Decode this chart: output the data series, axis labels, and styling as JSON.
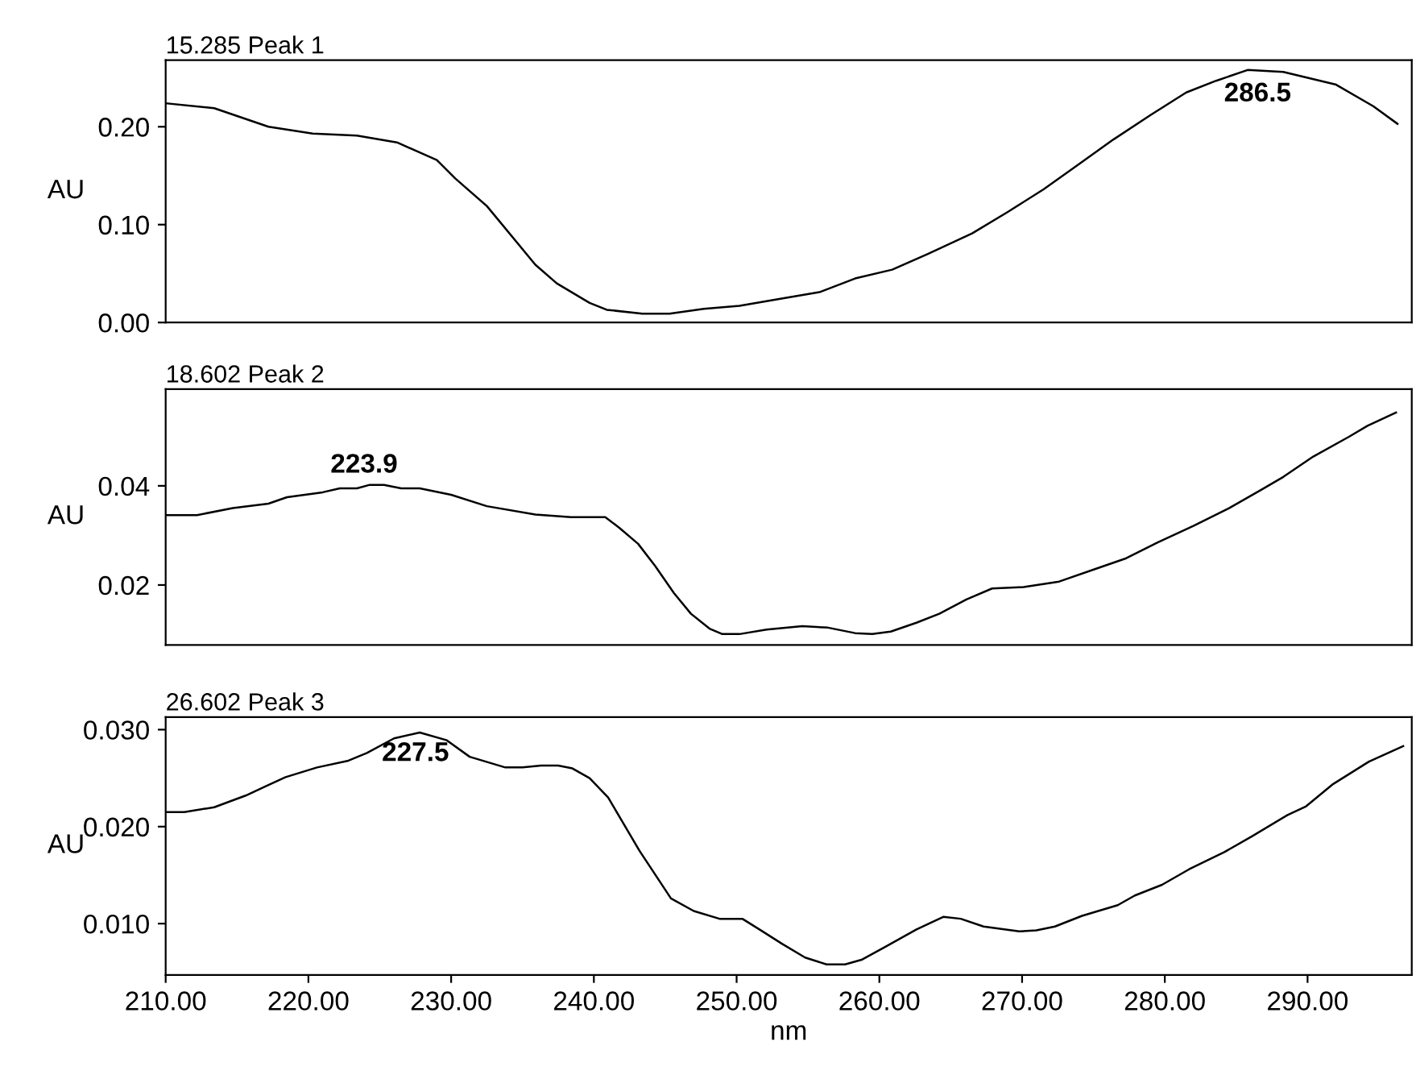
{
  "chart_data": [
    {
      "type": "line",
      "title": "15.285 Peak 1",
      "ylabel": "AU",
      "xlim": [
        210,
        297.3
      ],
      "ylim": [
        0,
        0.268
      ],
      "yticks": [
        {
          "value": 0,
          "label": "0.00"
        },
        {
          "value": 0.1,
          "label": "0.10"
        },
        {
          "value": 0.2,
          "label": "0.20"
        }
      ],
      "tick_labels": "y",
      "series": [
        {
          "color": "#000000",
          "x": [
            210,
            213.4,
            217.2,
            220.3,
            223.4,
            226.2,
            229,
            230.3,
            232.5,
            235.9,
            237.4,
            239.7,
            240.9,
            243.4,
            245.3,
            247.7,
            250.2,
            253.4,
            255.8,
            258.3,
            260.9,
            263.4,
            266.5,
            269,
            271.5,
            273.9,
            276.4,
            279,
            281.5,
            283.6,
            285.8,
            288.3,
            292,
            294.6,
            296.3
          ],
          "values": [
            0.224,
            0.219,
            0.2,
            0.193,
            0.191,
            0.184,
            0.166,
            0.147,
            0.119,
            0.059,
            0.04,
            0.02,
            0.013,
            0.009,
            0.009,
            0.014,
            0.017,
            0.025,
            0.031,
            0.045,
            0.054,
            0.07,
            0.091,
            0.113,
            0.136,
            0.161,
            0.187,
            0.212,
            0.235,
            0.247,
            0.258,
            0.256,
            0.243,
            0.221,
            0.203
          ]
        }
      ],
      "annotations": [
        {
          "text": "286.5",
          "x": 286.5,
          "y": 0.255
        }
      ]
    },
    {
      "type": "line",
      "title": "18.602 Peak 2",
      "ylabel": "AU",
      "xlim": [
        210,
        297.3
      ],
      "ylim": [
        0.0079,
        0.0595
      ],
      "yticks": [
        {
          "value": 0.02,
          "label": "0.02"
        },
        {
          "value": 0.04,
          "label": "0.04"
        }
      ],
      "tick_labels": "y",
      "series": [
        {
          "color": "#000000",
          "x": [
            210,
            212.2,
            214.7,
            217.2,
            218.5,
            221,
            222.2,
            223.4,
            224.3,
            225.3,
            226.5,
            227.8,
            230,
            232.5,
            235.9,
            238.4,
            240.8,
            241.8,
            243.1,
            244.3,
            245.6,
            246.8,
            248.1,
            249,
            250.2,
            252.1,
            254.6,
            256.4,
            258.3,
            259.5,
            260.8,
            262.6,
            264.2,
            266.1,
            267.9,
            270.1,
            272.6,
            275.1,
            277.3,
            279.5,
            282,
            284.5,
            286.7,
            288.3,
            290.4,
            292.9,
            294.2,
            296.2
          ],
          "values": [
            0.0341,
            0.0341,
            0.0355,
            0.0364,
            0.0377,
            0.0387,
            0.0395,
            0.0395,
            0.0402,
            0.0402,
            0.0395,
            0.0395,
            0.0382,
            0.0359,
            0.0342,
            0.0337,
            0.0337,
            0.0315,
            0.0283,
            0.0238,
            0.0184,
            0.0142,
            0.0112,
            0.0101,
            0.0101,
            0.011,
            0.0117,
            0.0114,
            0.0103,
            0.0101,
            0.0106,
            0.0124,
            0.0142,
            0.0171,
            0.0193,
            0.0196,
            0.0207,
            0.0232,
            0.0254,
            0.0286,
            0.0319,
            0.0355,
            0.0391,
            0.0418,
            0.0459,
            0.0499,
            0.0521,
            0.0548
          ]
        }
      ],
      "annotations": [
        {
          "text": "223.9",
          "x": 223.9,
          "y": 0.0402
        }
      ]
    },
    {
      "type": "line",
      "title": "26.602 Peak 3",
      "xlabel": "nm",
      "ylabel": "AU",
      "xlim": [
        210,
        297.3
      ],
      "ylim": [
        0.0047,
        0.0313
      ],
      "xticks": [
        {
          "value": 210,
          "label": "210.00"
        },
        {
          "value": 220,
          "label": "220.00"
        },
        {
          "value": 230,
          "label": "230.00"
        },
        {
          "value": 240,
          "label": "240.00"
        },
        {
          "value": 250,
          "label": "250.00"
        },
        {
          "value": 260,
          "label": "260.00"
        },
        {
          "value": 270,
          "label": "270.00"
        },
        {
          "value": 280,
          "label": "280.00"
        },
        {
          "value": 290,
          "label": "290.00"
        }
      ],
      "yticks": [
        {
          "value": 0.01,
          "label": "0.010"
        },
        {
          "value": 0.02,
          "label": "0.020"
        },
        {
          "value": 0.03,
          "label": "0.030"
        }
      ],
      "series": [
        {
          "color": "#000000",
          "x": [
            210,
            211.3,
            213.4,
            215.6,
            217.2,
            218.4,
            220.6,
            222.8,
            224.1,
            226,
            227.8,
            229.7,
            231.3,
            233.8,
            235,
            236.3,
            237.5,
            238.5,
            239.7,
            241,
            243.2,
            245.4,
            247,
            248.8,
            250.4,
            251.6,
            253.2,
            254.8,
            256.3,
            257.6,
            258.8,
            260.4,
            262.6,
            264.5,
            265.7,
            267.3,
            269.8,
            271,
            272.3,
            274.2,
            276.7,
            277.9,
            279.8,
            281.7,
            284.2,
            286.1,
            288.6,
            289.9,
            291.8,
            294.3,
            296.7
          ],
          "values": [
            0.0215,
            0.0215,
            0.022,
            0.0232,
            0.0243,
            0.0251,
            0.0261,
            0.0268,
            0.0276,
            0.0291,
            0.0297,
            0.0289,
            0.0272,
            0.0261,
            0.0261,
            0.0263,
            0.0263,
            0.026,
            0.025,
            0.023,
            0.0175,
            0.0126,
            0.0113,
            0.0105,
            0.0105,
            0.0094,
            0.0079,
            0.0065,
            0.0058,
            0.0058,
            0.0063,
            0.0076,
            0.0094,
            0.0107,
            0.0105,
            0.0097,
            0.0092,
            0.0093,
            0.0097,
            0.0108,
            0.0119,
            0.0129,
            0.014,
            0.0156,
            0.0174,
            0.019,
            0.0212,
            0.0221,
            0.0244,
            0.0267,
            0.0283
          ]
        }
      ],
      "annotations": [
        {
          "text": "227.5",
          "x": 227.5,
          "y": 0.0297
        }
      ]
    }
  ]
}
